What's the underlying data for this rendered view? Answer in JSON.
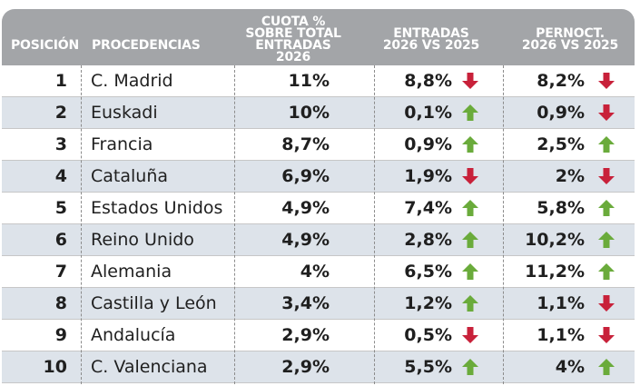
{
  "header": {
    "posicion": "POSICIÓN",
    "procedencias": "PROCEDENCIAS",
    "cuota": [
      "CUOTA %",
      "SOBRE TOTAL",
      "ENTRADAS 2026"
    ],
    "entradas": [
      "ENTRADAS",
      "2026 vs 2025"
    ],
    "pernoct": [
      "PERNOCT.",
      "2026 vs 2025"
    ]
  },
  "colors": {
    "header_bg": "#a3a5a8",
    "row_shade": "#dde3ea",
    "up": "#6aab3b",
    "down": "#c8213a"
  },
  "rows": [
    {
      "pos": "1",
      "name": "C. Madrid",
      "cuota": "11%",
      "entradas": "8,8%",
      "entradas_trend": "down-arrow-icon",
      "pernoct": "8,2%",
      "pernoct_trend": "down-arrow-icon"
    },
    {
      "pos": "2",
      "name": "Euskadi",
      "cuota": "10%",
      "entradas": "0,1%",
      "entradas_trend": "up-arrow-icon",
      "pernoct": "0,9%",
      "pernoct_trend": "down-arrow-icon"
    },
    {
      "pos": "3",
      "name": "Francia",
      "cuota": "8,7%",
      "entradas": "0,9%",
      "entradas_trend": "up-arrow-icon",
      "pernoct": "2,5%",
      "pernoct_trend": "up-arrow-icon"
    },
    {
      "pos": "4",
      "name": "Cataluña",
      "cuota": "6,9%",
      "entradas": "1,9%",
      "entradas_trend": "down-arrow-icon",
      "pernoct": "2%",
      "pernoct_trend": "down-arrow-icon"
    },
    {
      "pos": "5",
      "name": "Estados Unidos",
      "cuota": "4,9%",
      "entradas": "7,4%",
      "entradas_trend": "up-arrow-icon",
      "pernoct": "5,8%",
      "pernoct_trend": "up-arrow-icon"
    },
    {
      "pos": "6",
      "name": "Reino Unido",
      "cuota": "4,9%",
      "entradas": "2,8%",
      "entradas_trend": "up-arrow-icon",
      "pernoct": "10,2%",
      "pernoct_trend": "up-arrow-icon"
    },
    {
      "pos": "7",
      "name": "Alemania",
      "cuota": "4%",
      "entradas": "6,5%",
      "entradas_trend": "up-arrow-icon",
      "pernoct": "11,2%",
      "pernoct_trend": "up-arrow-icon"
    },
    {
      "pos": "8",
      "name": "Castilla y León",
      "cuota": "3,4%",
      "entradas": "1,2%",
      "entradas_trend": "up-arrow-icon",
      "pernoct": "1,1%",
      "pernoct_trend": "down-arrow-icon"
    },
    {
      "pos": "9",
      "name": "Andalucía",
      "cuota": "2,9%",
      "entradas": "0,5%",
      "entradas_trend": "down-arrow-icon",
      "pernoct": "1,1%",
      "pernoct_trend": "down-arrow-icon"
    },
    {
      "pos": "10",
      "name": "C. Valenciana",
      "cuota": "2,9%",
      "entradas": "5,5%",
      "entradas_trend": "up-arrow-icon",
      "pernoct": "4%",
      "pernoct_trend": "up-arrow-icon"
    }
  ]
}
